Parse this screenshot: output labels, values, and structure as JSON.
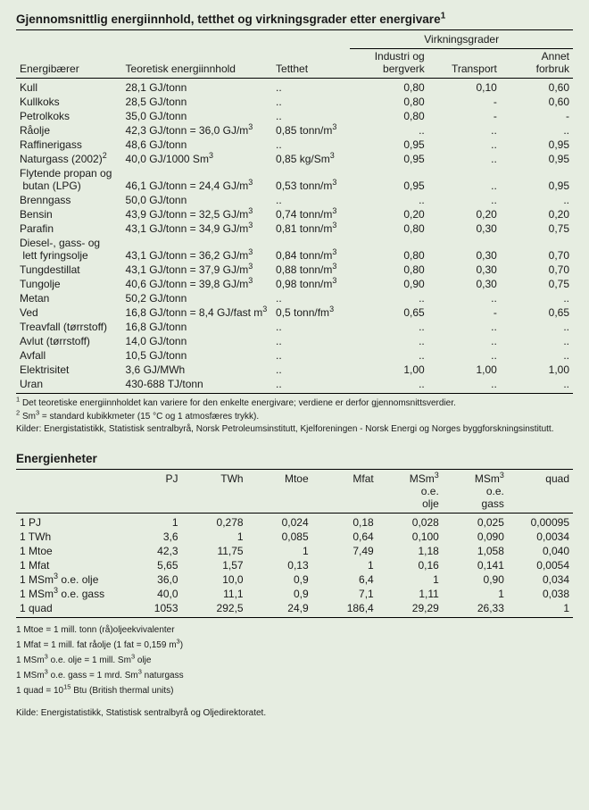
{
  "background_color": "#e6ede1",
  "text_color": "#1a1a1a",
  "table1": {
    "title_html": "Gjennomsnittlig energiinnhold, tetthet og virkningsgrader etter energivare<sup>1</sup>",
    "group_header": "Virkningsgrader",
    "columns": {
      "energibaerer": "Energibærer",
      "teoretisk": "Teoretisk energiinnhold",
      "tetthet": "Tetthet",
      "industri_html": "Industri og<br>bergverk",
      "transport": "Transport",
      "annet_html": "Annet<br>forbruk"
    },
    "rows": [
      {
        "e": "Kull",
        "t": "28,1 GJ/tonn",
        "d": "..",
        "i": "0,80",
        "tr": "0,10",
        "a": "0,60"
      },
      {
        "e": "Kullkoks",
        "t": "28,5 GJ/tonn",
        "d": "..",
        "i": "0,80",
        "tr": "-",
        "a": "0,60"
      },
      {
        "e": "Petrolkoks",
        "t": "35,0 GJ/tonn",
        "d": "..",
        "i": "0,80",
        "tr": "-",
        "a": "-"
      },
      {
        "e": "Råolje",
        "t_html": "42,3 GJ/tonn = 36,0 GJ/m<sup>3</sup>",
        "d_html": "0,85 tonn/m<sup>3</sup>",
        "i": "..",
        "tr": "..",
        "a": ".."
      },
      {
        "e": "Raffinerigass",
        "t": "48,6 GJ/tonn",
        "d": "..",
        "i": "0,95",
        "tr": "..",
        "a": "0,95"
      },
      {
        "e_html": "Naturgass (2002)<sup>2</sup>",
        "t_html": "40,0 GJ/1000 Sm<sup>3</sup>",
        "d_html": "0,85 kg/Sm<sup>3</sup>",
        "i": "0,95",
        "tr": "..",
        "a": "0,95"
      },
      {
        "e_html": "Flytende propan og<br>&nbsp;butan (LPG)",
        "t_html": "46,1 GJ/tonn = 24,4 GJ/m<sup>3</sup>",
        "d_html": "0,53 tonn/m<sup>3</sup>",
        "i": "0,95",
        "tr": "..",
        "a": "0,95"
      },
      {
        "e": "Brenngass",
        "t": "50,0 GJ/tonn",
        "d": "..",
        "i": "..",
        "tr": "..",
        "a": ".."
      },
      {
        "e": "Bensin",
        "t_html": "43,9 GJ/tonn = 32,5 GJ/m<sup>3</sup>",
        "d_html": "0,74 tonn/m<sup>3</sup>",
        "i": "0,20",
        "tr": "0,20",
        "a": "0,20"
      },
      {
        "e": "Parafin",
        "t_html": "43,1 GJ/tonn = 34,9 GJ/m<sup>3</sup>",
        "d_html": "0,81 tonn/m<sup>3</sup>",
        "i": "0,80",
        "tr": "0,30",
        "a": "0,75"
      },
      {
        "e_html": "Diesel-, gass- og<br>&nbsp;lett fyringsolje",
        "t_html": "43,1 GJ/tonn = 36,2 GJ/m<sup>3</sup>",
        "d_html": "0,84 tonn/m<sup>3</sup>",
        "i": "0,80",
        "tr": "0,30",
        "a": "0,70"
      },
      {
        "e": "Tungdestillat",
        "t_html": "43,1 GJ/tonn = 37,9 GJ/m<sup>3</sup>",
        "d_html": "0,88 tonn/m<sup>3</sup>",
        "i": "0,80",
        "tr": "0,30",
        "a": "0,70"
      },
      {
        "e": "Tungolje",
        "t_html": "40,6 GJ/tonn = 39,8 GJ/m<sup>3</sup>",
        "d_html": "0,98 tonn/m<sup>3</sup>",
        "i": "0,90",
        "tr": "0,30",
        "a": "0,75"
      },
      {
        "e": "Metan",
        "t": "50,2 GJ/tonn",
        "d": "..",
        "i": "..",
        "tr": "..",
        "a": ".."
      },
      {
        "e": "Ved",
        "t_html": "16,8 GJ/tonn = 8,4 GJ/fast m<sup>3</sup>",
        "d_html": "0,5 tonn/fm<sup>3</sup>",
        "i": "0,65",
        "tr": "-",
        "a": "0,65"
      },
      {
        "e": "Treavfall (tørrstoff)",
        "t": "16,8 GJ/tonn",
        "d": "..",
        "i": "..",
        "tr": "..",
        "a": ".."
      },
      {
        "e": "Avlut (tørrstoff)",
        "t": "14,0 GJ/tonn",
        "d": "..",
        "i": "..",
        "tr": "..",
        "a": ".."
      },
      {
        "e": "Avfall",
        "t": "10,5 GJ/tonn",
        "d": "..",
        "i": "..",
        "tr": "..",
        "a": ".."
      },
      {
        "e": "Elektrisitet",
        "t": "3,6 GJ/MWh",
        "d": "..",
        "i": "1,00",
        "tr": "1,00",
        "a": "1,00"
      },
      {
        "e": "Uran",
        "t": "430-688 TJ/tonn",
        "d": "..",
        "i": "..",
        "tr": "..",
        "a": ".."
      }
    ],
    "footnotes": [
      "<sup>1</sup> Det teoretiske energiinnholdet kan variere for den enkelte energivare; verdiene er derfor gjennomsnittsverdier.",
      "<sup>2</sup> Sm<sup>3</sup> = standard kubikkmeter (15 °C og 1 atmosfæres trykk).",
      "Kilder: Energistatistikk, Statistisk sentralbyrå, Norsk Petroleumsinstitutt, Kjelforeningen - Norsk Energi og Norges byggforskningsinstitutt."
    ]
  },
  "table2": {
    "title": "Energienheter",
    "columns_html": [
      "PJ",
      "TWh",
      "Mtoe",
      "Mfat",
      "MSm<sup>3</sup><br>o.e.<br>olje",
      "MSm<sup>3</sup><br>o.e.<br>gass",
      "quad"
    ],
    "rows": [
      {
        "l": "1 PJ",
        "c": [
          "1",
          "0,278",
          "0,024",
          "0,18",
          "0,028",
          "0,025",
          "0,00095"
        ]
      },
      {
        "l": "1 TWh",
        "c": [
          "3,6",
          "1",
          "0,085",
          "0,64",
          "0,100",
          "0,090",
          "0,0034"
        ]
      },
      {
        "l": "1 Mtoe",
        "c": [
          "42,3",
          "11,75",
          "1",
          "7,49",
          "1,18",
          "1,058",
          "0,040"
        ]
      },
      {
        "l": "1 Mfat",
        "c": [
          "5,65",
          "1,57",
          "0,13",
          "1",
          "0,16",
          "0,141",
          "0,0054"
        ]
      },
      {
        "l_html": "1 MSm<sup>3</sup> o.e. olje",
        "c": [
          "36,0",
          "10,0",
          "0,9",
          "6,4",
          "1",
          "0,90",
          "0,034"
        ]
      },
      {
        "l_html": "1 MSm<sup>3</sup> o.e. gass",
        "c": [
          "40,0",
          "11,1",
          "0,9",
          "7,1",
          "1,11",
          "1",
          "0,038"
        ]
      },
      {
        "l": "1 quad",
        "c": [
          "1053",
          "292,5",
          "24,9",
          "186,4",
          "29,29",
          "26,33",
          "1"
        ]
      }
    ],
    "definitions_html": [
      "1 Mtoe = 1 mill. tonn (rå)oljeekvivalenter",
      "1 Mfat = 1 mill. fat råolje (1 fat = 0,159 m<sup>3</sup>)",
      "1 MSm<sup>3</sup> o.e. olje = 1 mill. Sm<sup>3</sup> olje",
      "1 MSm<sup>3</sup> o.e. gass = 1 mrd. Sm<sup>3</sup> naturgass",
      "1 quad = 10<sup>15</sup> Btu (British thermal units)"
    ],
    "source": "Kilde: Energistatistikk, Statistisk sentralbyrå og Oljedirektoratet."
  }
}
